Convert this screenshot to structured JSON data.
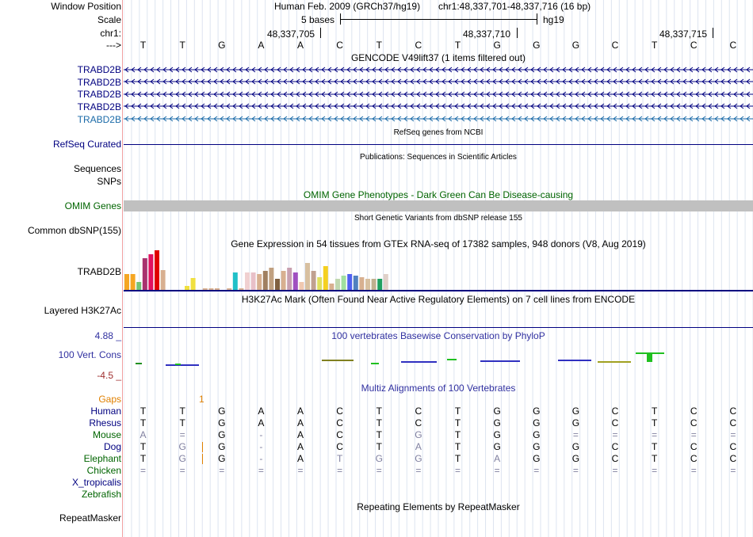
{
  "header": {
    "window_position_label": "Window Position",
    "scale_label": "Scale",
    "chrom_label": "chr1:",
    "strand_label": "--->",
    "assembly": "Human Feb. 2009 (GRCh37/hg19)",
    "position": "chr1:48,337,701-48,337,716 (16 bp)",
    "scale_text": "5 bases",
    "scale_db": "hg19",
    "coords": [
      "48,337,705",
      "48,337,710",
      "48,337,715"
    ]
  },
  "bases": [
    "T",
    "T",
    "G",
    "A",
    "A",
    "C",
    "T",
    "C",
    "T",
    "G",
    "G",
    "G",
    "C",
    "T",
    "C",
    "C"
  ],
  "gencode": {
    "title": "GENCODE V49lift37 (1 items filtered out)",
    "genes": [
      "TRABD2B",
      "TRABD2B",
      "TRABD2B",
      "TRABD2B",
      "TRABD2B"
    ]
  },
  "refseq": {
    "title": "RefSeq genes from NCBI",
    "label": "RefSeq Curated"
  },
  "publications": {
    "title": "Publications: Sequences in Scientific Articles",
    "label1": "Sequences",
    "label2": "SNPs"
  },
  "omim": {
    "title": "OMIM Gene Phenotypes - Dark Green Can Be Disease-causing",
    "label": "OMIM Genes"
  },
  "dbsnp": {
    "title": "Short Genetic Variants from dbSNP release 155",
    "label": "Common dbSNP(155)"
  },
  "gtex": {
    "title": "Gene Expression in 54 tissues from GTEx RNA-seq of 17382 samples, 948 donors (V8, Aug 2019)",
    "label": "TRABD2B"
  },
  "h3k27ac": {
    "title": "H3K27Ac Mark (Often Found Near Active Regulatory Elements) on 7 cell lines from ENCODE",
    "label": "Layered H3K27Ac"
  },
  "phylop": {
    "title": "100 vertebrates Basewise Conservation by PhyloP",
    "label": "100 Vert. Cons",
    "max": "4.88 _",
    "min": "-4.5 _"
  },
  "multiz": {
    "title": "Multiz Alignments of 100 Vertebrates",
    "gaps_label": "Gaps",
    "gaps_value": "1",
    "species": [
      {
        "name": "Human",
        "seq": [
          "T",
          "T",
          "G",
          "A",
          "A",
          "C",
          "T",
          "C",
          "T",
          "G",
          "G",
          "G",
          "C",
          "T",
          "C",
          "C"
        ]
      },
      {
        "name": "Rhesus",
        "seq": [
          "T",
          "T",
          "G",
          "A",
          "A",
          "C",
          "T",
          "C",
          "T",
          "G",
          "G",
          "G",
          "C",
          "T",
          "C",
          "C"
        ]
      },
      {
        "name": "Mouse",
        "seq": [
          "A",
          "=",
          "G",
          "-",
          "A",
          "C",
          "T",
          "G",
          "T",
          "G",
          "G",
          "=",
          "=",
          "=",
          "=",
          "="
        ]
      },
      {
        "name": "Dog",
        "seq": [
          "T",
          "G",
          "G",
          "-",
          "A",
          "C",
          "T",
          "A",
          "T",
          "G",
          "G",
          "G",
          "C",
          "T",
          "C",
          "C"
        ]
      },
      {
        "name": "Elephant",
        "seq": [
          "T",
          "G",
          "G",
          "-",
          "A",
          "T",
          "G",
          "G",
          "T",
          "A",
          "G",
          "G",
          "C",
          "T",
          "C",
          "C"
        ]
      },
      {
        "name": "Chicken",
        "seq": [
          "=",
          "=",
          "=",
          "=",
          "=",
          "=",
          "=",
          "=",
          "=",
          "=",
          "=",
          "=",
          "=",
          "=",
          "=",
          "="
        ]
      },
      {
        "name": "X_tropicalis",
        "seq": []
      },
      {
        "name": "Zebrafish",
        "seq": []
      }
    ]
  },
  "repeatmasker": {
    "title": "Repeating Elements by RepeatMasker",
    "label": "RepeatMasker"
  },
  "colors": {
    "blue_label": "#000080",
    "green_label": "#006400",
    "gaps_orange": "#e08000",
    "link_blue": "#1a6aa8"
  },
  "gtex_bars": [
    {
      "v": 20,
      "c": "#f5a623"
    },
    {
      "v": 20,
      "c": "#f5a623"
    },
    {
      "v": 10,
      "c": "#74c476"
    },
    {
      "v": 40,
      "c": "#a8326e"
    },
    {
      "v": 45,
      "c": "#e0115f"
    },
    {
      "v": 50,
      "c": "#e00000"
    },
    {
      "v": 25,
      "c": "#d8b090"
    },
    {
      "v": 0,
      "c": "#ffffff"
    },
    {
      "v": 0,
      "c": "#ffffff"
    },
    {
      "v": 0,
      "c": "#ffffff"
    },
    {
      "v": 5,
      "c": "#f0e040"
    },
    {
      "v": 15,
      "c": "#f0e040"
    },
    {
      "v": 0,
      "c": "#ffffff"
    },
    {
      "v": 2,
      "c": "#d8b090"
    },
    {
      "v": 2,
      "c": "#d8b090"
    },
    {
      "v": 2,
      "c": "#d8b090"
    },
    {
      "v": 0,
      "c": "#ffffff"
    },
    {
      "v": 2,
      "c": "#d8b090"
    },
    {
      "v": 22,
      "c": "#20c0c8"
    },
    {
      "v": 2,
      "c": "#d8b090"
    },
    {
      "v": 22,
      "c": "#f0d0d0"
    },
    {
      "v": 22,
      "c": "#e8c0c8"
    },
    {
      "v": 20,
      "c": "#d8b090"
    },
    {
      "v": 24,
      "c": "#a08060"
    },
    {
      "v": 28,
      "c": "#c0a080"
    },
    {
      "v": 14,
      "c": "#806040"
    },
    {
      "v": 24,
      "c": "#d8b090"
    },
    {
      "v": 28,
      "c": "#c8a0b0"
    },
    {
      "v": 22,
      "c": "#a050c0"
    },
    {
      "v": 10,
      "c": "#f0c8b0"
    },
    {
      "v": 34,
      "c": "#d8c0a0"
    },
    {
      "v": 24,
      "c": "#c0a090"
    },
    {
      "v": 16,
      "c": "#e0e060"
    },
    {
      "v": 30,
      "c": "#f5d020"
    },
    {
      "v": 8,
      "c": "#d8b090"
    },
    {
      "v": 14,
      "c": "#c0d8b0"
    },
    {
      "v": 18,
      "c": "#a0e0a0"
    },
    {
      "v": 20,
      "c": "#5060f0"
    },
    {
      "v": 18,
      "c": "#5080c0"
    },
    {
      "v": 16,
      "c": "#d8b090"
    },
    {
      "v": 14,
      "c": "#d8c0a0"
    },
    {
      "v": 14,
      "c": "#c0b090"
    },
    {
      "v": 14,
      "c": "#20a060"
    },
    {
      "v": 20,
      "c": "#e0d0c8"
    }
  ]
}
